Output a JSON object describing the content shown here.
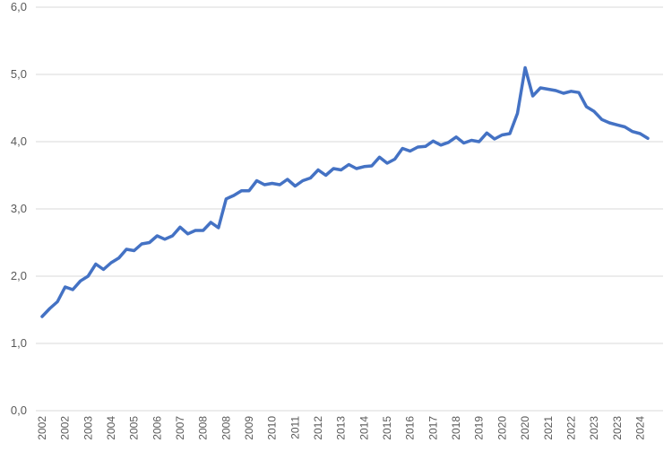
{
  "chart_data": {
    "type": "line",
    "categories": [
      "2002",
      null,
      null,
      "2002",
      null,
      null,
      "2003",
      null,
      null,
      "2004",
      null,
      null,
      "2005",
      null,
      null,
      "2006",
      null,
      null,
      "2007",
      null,
      null,
      "2008",
      null,
      null,
      "2008",
      null,
      null,
      "2009",
      null,
      null,
      "2010",
      null,
      null,
      "2011",
      null,
      null,
      "2012",
      null,
      null,
      "2013",
      null,
      null,
      "2014",
      null,
      null,
      "2015",
      null,
      null,
      "2016",
      null,
      null,
      "2017",
      null,
      null,
      "2018",
      null,
      null,
      "2019",
      null,
      null,
      "2020",
      null,
      null,
      "2020",
      null,
      null,
      "2021",
      null,
      null,
      "2022",
      null,
      null,
      "2023",
      null,
      null,
      "2023",
      null,
      null,
      "2024",
      null
    ],
    "series": [
      {
        "color": "#4472c4",
        "values": [
          1.4,
          1.52,
          1.62,
          1.84,
          1.8,
          1.93,
          2.0,
          2.18,
          2.1,
          2.2,
          2.27,
          2.4,
          2.38,
          2.48,
          2.5,
          2.6,
          2.55,
          2.6,
          2.73,
          2.63,
          2.68,
          2.68,
          2.8,
          2.72,
          3.15,
          3.2,
          3.27,
          3.27,
          3.42,
          3.36,
          3.38,
          3.36,
          3.44,
          3.34,
          3.42,
          3.46,
          3.58,
          3.5,
          3.6,
          3.58,
          3.66,
          3.6,
          3.63,
          3.64,
          3.77,
          3.68,
          3.74,
          3.9,
          3.86,
          3.92,
          3.93,
          4.01,
          3.95,
          3.99,
          4.07,
          3.98,
          4.02,
          4.0,
          4.13,
          4.04,
          4.1,
          4.12,
          4.42,
          5.1,
          4.68,
          4.8,
          4.78,
          4.76,
          4.72,
          4.75,
          4.73,
          4.52,
          4.45,
          4.33,
          4.28,
          4.25,
          4.22,
          4.15,
          4.12,
          4.05
        ]
      }
    ],
    "ylim": [
      0,
      6
    ],
    "yticks": [
      {
        "value": 0,
        "label": "0,0"
      },
      {
        "value": 1,
        "label": "1,0"
      },
      {
        "value": 2,
        "label": "2,0"
      },
      {
        "value": 3,
        "label": "3,0"
      },
      {
        "value": 4,
        "label": "4,0"
      },
      {
        "value": 5,
        "label": "5,0"
      },
      {
        "value": 6,
        "label": "6,0"
      }
    ],
    "grid": true
  }
}
